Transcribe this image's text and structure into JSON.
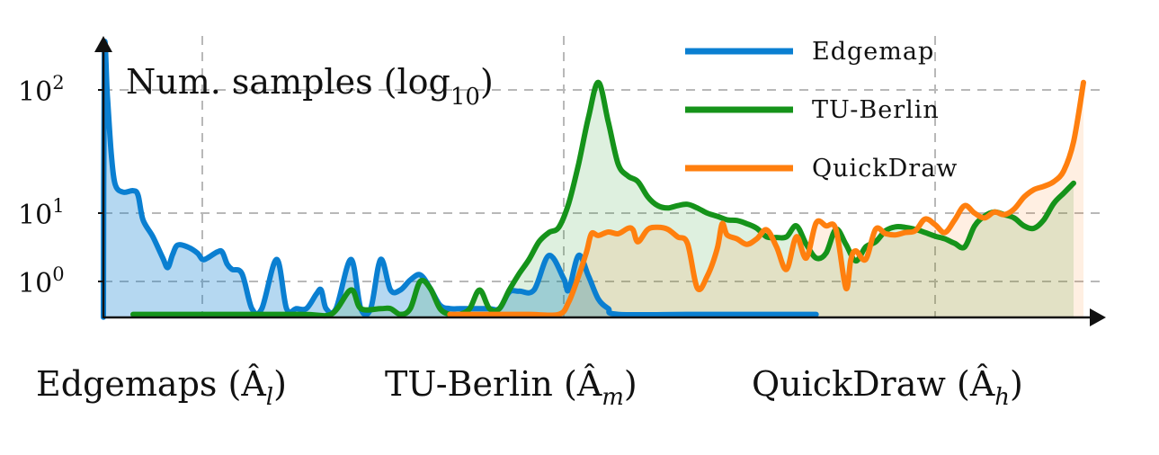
{
  "chart_data": {
    "type": "area",
    "ylabel_main": "Num. samples (log",
    "ylabel_sub": "10",
    "ylabel_close": ")",
    "y_scale": "log",
    "y_ticks": [
      {
        "base": "10",
        "exp": "0",
        "value": 1
      },
      {
        "base": "10",
        "exp": "1",
        "value": 10
      },
      {
        "base": "10",
        "exp": "2",
        "value": 100
      }
    ],
    "ylim": [
      0.3,
      240
    ],
    "xlim": [
      0,
      100
    ],
    "grid": true,
    "legend_position": "top-right",
    "x_groups": [
      {
        "label": "Edgemaps",
        "sub": "l"
      },
      {
        "label": "TU-Berlin",
        "sub": "m"
      },
      {
        "label": "QuickDraw",
        "sub": "h"
      }
    ],
    "series": [
      {
        "name": "Edgemap",
        "color": "#0a7fd1",
        "points": [
          [
            0,
            0.3
          ],
          [
            0.1,
            200
          ],
          [
            0.4,
            90
          ],
          [
            0.8,
            30
          ],
          [
            1.2,
            17
          ],
          [
            2,
            14.8
          ],
          [
            3,
            15.2
          ],
          [
            3.5,
            14
          ],
          [
            4,
            8
          ],
          [
            5,
            4.5
          ],
          [
            6,
            2.2
          ],
          [
            6.5,
            1.6
          ],
          [
            7,
            2.5
          ],
          [
            7.5,
            3.4
          ],
          [
            8.5,
            3.2
          ],
          [
            9.5,
            2.6
          ],
          [
            10,
            2.1
          ],
          [
            10.5,
            2.2
          ],
          [
            11.5,
            2.7
          ],
          [
            12,
            2.7
          ],
          [
            12.5,
            1.8
          ],
          [
            13,
            1.5
          ],
          [
            14,
            1.3
          ],
          [
            15,
            0.4
          ],
          [
            16,
            0.4
          ],
          [
            17.5,
            2.1
          ],
          [
            18.5,
            0.4
          ],
          [
            19.5,
            0.4
          ],
          [
            20.5,
            0.4
          ],
          [
            21.5,
            0.65
          ],
          [
            22,
            0.75
          ],
          [
            22.5,
            0.4
          ],
          [
            23.5,
            0.4
          ],
          [
            25,
            2.1
          ],
          [
            26,
            0.4
          ],
          [
            27,
            0.4
          ],
          [
            28,
            2.1
          ],
          [
            29,
            0.75
          ],
          [
            30,
            0.75
          ],
          [
            31,
            1.05
          ],
          [
            32,
            1.25
          ],
          [
            33,
            0.8
          ],
          [
            34,
            0.45
          ],
          [
            35,
            0.4
          ],
          [
            36,
            0.4
          ],
          [
            37,
            0.4
          ],
          [
            38,
            0.4
          ],
          [
            39,
            0.4
          ],
          [
            40,
            0.4
          ],
          [
            41,
            0.7
          ],
          [
            42,
            0.72
          ],
          [
            43.5,
            0.75
          ],
          [
            45,
            2.4
          ],
          [
            46.5,
            1.1
          ],
          [
            47,
            0.75
          ],
          [
            48,
            2.4
          ],
          [
            49,
            1.2
          ],
          [
            50,
            0.55
          ],
          [
            51,
            0.4
          ],
          [
            52,
            0.33
          ],
          [
            60,
            0.33
          ],
          [
            72,
            0.33
          ]
        ]
      },
      {
        "name": "TU-Berlin",
        "color": "#15931a",
        "points": [
          [
            3,
            0.33
          ],
          [
            10,
            0.33
          ],
          [
            20,
            0.33
          ],
          [
            23,
            0.33
          ],
          [
            25,
            0.75
          ],
          [
            26,
            0.4
          ],
          [
            28,
            0.4
          ],
          [
            29,
            0.4
          ],
          [
            30,
            0.33
          ],
          [
            31,
            0.4
          ],
          [
            32,
            1.0
          ],
          [
            33,
            0.8
          ],
          [
            34,
            0.4
          ],
          [
            35,
            0.33
          ],
          [
            36,
            0.33
          ],
          [
            37,
            0.4
          ],
          [
            38,
            0.75
          ],
          [
            39,
            0.4
          ],
          [
            40,
            0.4
          ],
          [
            41,
            0.75
          ],
          [
            42,
            1.3
          ],
          [
            43,
            2.1
          ],
          [
            44,
            3.8
          ],
          [
            45,
            5.2
          ],
          [
            46,
            6.2
          ],
          [
            47,
            12
          ],
          [
            48,
            25
          ],
          [
            49,
            60
          ],
          [
            50,
            115
          ],
          [
            51,
            55
          ],
          [
            52,
            25
          ],
          [
            53,
            20
          ],
          [
            54,
            18
          ],
          [
            55,
            13.5
          ],
          [
            56,
            11.5
          ],
          [
            57,
            11
          ],
          [
            58,
            11.5
          ],
          [
            59,
            11.8
          ],
          [
            60,
            11
          ],
          [
            61,
            10
          ],
          [
            62,
            9
          ],
          [
            63,
            8
          ],
          [
            64,
            7.8
          ],
          [
            65,
            7
          ],
          [
            66,
            6
          ],
          [
            67,
            4.5
          ],
          [
            68,
            4.4
          ],
          [
            69,
            4.5
          ],
          [
            70,
            6.5
          ],
          [
            71,
            3.5
          ],
          [
            72,
            2.2
          ],
          [
            73,
            2.6
          ],
          [
            74,
            5.8
          ],
          [
            75,
            3.5
          ],
          [
            76,
            2.0
          ],
          [
            77,
            3.2
          ],
          [
            78,
            3.8
          ],
          [
            79,
            5.5
          ],
          [
            80,
            6.3
          ],
          [
            81,
            6.2
          ],
          [
            82,
            5.8
          ],
          [
            83,
            5.2
          ],
          [
            84,
            4.6
          ],
          [
            85,
            4.2
          ],
          [
            86,
            3.6
          ],
          [
            87,
            3.2
          ],
          [
            88,
            6.5
          ],
          [
            89,
            9.0
          ],
          [
            90,
            10.2
          ],
          [
            91,
            9.5
          ],
          [
            92,
            8.5
          ],
          [
            93,
            6.5
          ],
          [
            94,
            6.0
          ],
          [
            95,
            8.0
          ],
          [
            96,
            12
          ],
          [
            97,
            14.5
          ],
          [
            98,
            17.5
          ]
        ]
      },
      {
        "name": "QuickDraw",
        "color": "#ff7f0e",
        "points": [
          [
            35,
            0.33
          ],
          [
            40,
            0.33
          ],
          [
            43,
            0.33
          ],
          [
            46,
            0.33
          ],
          [
            47,
            0.5
          ],
          [
            48,
            1.2
          ],
          [
            48.8,
            2.7
          ],
          [
            49.3,
            5.0
          ],
          [
            50,
            4.7
          ],
          [
            51,
            5.3
          ],
          [
            52,
            5.0
          ],
          [
            53,
            6.0
          ],
          [
            53.5,
            5.7
          ],
          [
            54,
            3.8
          ],
          [
            55,
            5.8
          ],
          [
            56,
            6.2
          ],
          [
            57,
            5.8
          ],
          [
            58,
            4.5
          ],
          [
            59,
            3.6
          ],
          [
            60,
            0.8
          ],
          [
            61,
            1.2
          ],
          [
            62,
            3.0
          ],
          [
            62.5,
            7.0
          ],
          [
            63,
            4.8
          ],
          [
            64,
            4.2
          ],
          [
            65,
            3.5
          ],
          [
            66,
            4.2
          ],
          [
            67,
            5.7
          ],
          [
            68,
            3.2
          ],
          [
            69,
            1.5
          ],
          [
            70,
            4.5
          ],
          [
            71,
            2.2
          ],
          [
            72,
            7.2
          ],
          [
            73,
            6.5
          ],
          [
            74,
            5.8
          ],
          [
            75,
            0.8
          ],
          [
            75.5,
            2.1
          ],
          [
            76,
            2.8
          ],
          [
            77,
            2.1
          ],
          [
            78,
            5.8
          ],
          [
            79,
            5.0
          ],
          [
            80,
            4.8
          ],
          [
            81,
            5.2
          ],
          [
            82,
            5.5
          ],
          [
            83,
            8.2
          ],
          [
            84,
            6.8
          ],
          [
            85,
            5.2
          ],
          [
            86,
            8.0
          ],
          [
            87,
            11.5
          ],
          [
            88,
            10
          ],
          [
            89,
            8.5
          ],
          [
            90,
            10.2
          ],
          [
            91,
            9.5
          ],
          [
            92,
            10.8
          ],
          [
            93,
            13.5
          ],
          [
            94,
            15.5
          ],
          [
            95,
            16.5
          ],
          [
            96,
            18
          ],
          [
            97,
            22
          ],
          [
            98,
            38
          ],
          [
            99,
            115
          ]
        ]
      }
    ]
  }
}
